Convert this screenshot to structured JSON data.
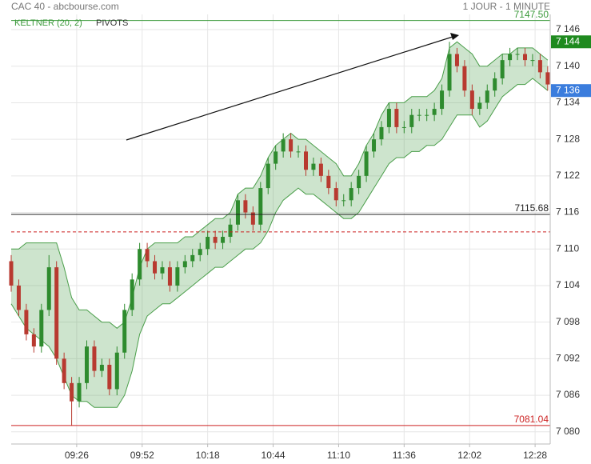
{
  "chart_data": {
    "type": "candlestick",
    "title": "CAC 40 - abcbourse.com",
    "subtitle": "1 JOUR - 1 MINUTE",
    "x": [
      "09:00",
      "09:03",
      "09:06",
      "09:09",
      "09:12",
      "09:15",
      "09:18",
      "09:21",
      "09:24",
      "09:27",
      "09:30",
      "09:33",
      "09:36",
      "09:39",
      "09:42",
      "09:45",
      "09:48",
      "09:51",
      "09:54",
      "09:57",
      "10:00",
      "10:03",
      "10:06",
      "10:09",
      "10:12",
      "10:15",
      "10:18",
      "10:21",
      "10:24",
      "10:27",
      "10:30",
      "10:33",
      "10:36",
      "10:39",
      "10:42",
      "10:45",
      "10:48",
      "10:51",
      "10:54",
      "10:57",
      "11:00",
      "11:03",
      "11:06",
      "11:09",
      "11:12",
      "11:15",
      "11:18",
      "11:21",
      "11:24",
      "11:27",
      "11:30",
      "11:33",
      "11:36",
      "11:39",
      "11:42",
      "11:45",
      "11:48",
      "11:51",
      "11:54",
      "11:57",
      "12:00",
      "12:03",
      "12:06",
      "12:09",
      "12:12",
      "12:15",
      "12:18",
      "12:21",
      "12:24",
      "12:27",
      "12:30",
      "12:33"
    ],
    "open": [
      7108,
      7104,
      7100,
      7096,
      7094,
      7100,
      7107,
      7092,
      7088,
      7085,
      7088,
      7094,
      7090,
      7091,
      7087,
      7093,
      7100,
      7105,
      7110,
      7108,
      7106,
      7107,
      7104,
      7107,
      7108,
      7109,
      7110,
      7112,
      7111,
      7112,
      7114,
      7118,
      7116,
      7114,
      7120,
      7124,
      7126,
      7128,
      7126,
      7126,
      7123,
      7124,
      7122,
      7120,
      7118,
      7118,
      7120,
      7122,
      7126,
      7128,
      7130,
      7133,
      7130,
      7130,
      7132,
      7132,
      7132,
      7133,
      7136,
      7142,
      7140,
      7136,
      7133,
      7134,
      7136,
      7138,
      7141,
      7142,
      7142,
      7141,
      7141,
      7139
    ],
    "high": [
      7109,
      7105,
      7101,
      7097,
      7101,
      7109,
      7108,
      7093,
      7089,
      7089,
      7095,
      7095,
      7092,
      7092,
      7094,
      7101,
      7106,
      7111,
      7111,
      7109,
      7108,
      7108,
      7108,
      7109,
      7110,
      7111,
      7113,
      7113,
      7113,
      7115,
      7119,
      7119,
      7117,
      7121,
      7125,
      7127,
      7129,
      7129,
      7127,
      7127,
      7125,
      7125,
      7123,
      7121,
      7119,
      7121,
      7123,
      7127,
      7129,
      7131,
      7134,
      7134,
      7131,
      7133,
      7133,
      7133,
      7134,
      7137,
      7144,
      7143,
      7141,
      7137,
      7135,
      7137,
      7139,
      7142,
      7143,
      7143,
      7143,
      7142,
      7142,
      7140
    ],
    "low": [
      7103,
      7099,
      7095,
      7093,
      7093,
      7099,
      7091,
      7087,
      7081,
      7084,
      7087,
      7089,
      7089,
      7086,
      7086,
      7092,
      7099,
      7104,
      7107,
      7105,
      7105,
      7103,
      7103,
      7106,
      7107,
      7108,
      7109,
      7110,
      7110,
      7111,
      7113,
      7115,
      7113,
      7113,
      7119,
      7123,
      7125,
      7125,
      7125,
      7122,
      7122,
      7121,
      7119,
      7117,
      7117,
      7117,
      7119,
      7121,
      7125,
      7127,
      7129,
      7129,
      7129,
      7129,
      7131,
      7131,
      7131,
      7132,
      7135,
      7139,
      7135,
      7132,
      7132,
      7133,
      7135,
      7137,
      7140,
      7141,
      7140,
      7140,
      7138,
      7136
    ],
    "close": [
      7104,
      7100,
      7096,
      7094,
      7100,
      7107,
      7092,
      7088,
      7085,
      7088,
      7094,
      7090,
      7091,
      7087,
      7093,
      7100,
      7105,
      7110,
      7108,
      7106,
      7107,
      7104,
      7107,
      7108,
      7109,
      7110,
      7112,
      7111,
      7112,
      7114,
      7118,
      7116,
      7114,
      7120,
      7124,
      7126,
      7128,
      7126,
      7126,
      7123,
      7124,
      7122,
      7120,
      7118,
      7118,
      7120,
      7122,
      7126,
      7128,
      7130,
      7133,
      7130,
      7130,
      7132,
      7132,
      7132,
      7133,
      7136,
      7142,
      7140,
      7136,
      7133,
      7134,
      7136,
      7138,
      7141,
      7142,
      7142,
      7141,
      7141,
      7139,
      7137
    ],
    "up_color": "#2e8b2e",
    "down_color": "#b83a30",
    "keltner": {
      "name": "KELTNER (20, 2)",
      "color": "#4a9e4a",
      "upper": [
        7110,
        7110,
        7111,
        7111,
        7111,
        7111,
        7111,
        7107,
        7102,
        7100,
        7100,
        7099,
        7098,
        7098,
        7097,
        7098,
        7102,
        7107,
        7110,
        7111,
        7111,
        7111,
        7111,
        7112,
        7112,
        7113,
        7114,
        7115,
        7115,
        7116,
        7119,
        7120,
        7120,
        7122,
        7125,
        7127,
        7128,
        7129,
        7128,
        7128,
        7127,
        7126,
        7125,
        7124,
        7122,
        7122,
        7124,
        7127,
        7129,
        7132,
        7134,
        7134,
        7134,
        7135,
        7135,
        7135,
        7136,
        7138,
        7143,
        7144,
        7143,
        7142,
        7140,
        7140,
        7141,
        7142,
        7142,
        7143,
        7143,
        7143,
        7142,
        7141
      ],
      "lower": [
        7101,
        7099,
        7097,
        7096,
        7095,
        7094,
        7092,
        7089,
        7086,
        7085,
        7085,
        7084,
        7084,
        7084,
        7084,
        7086,
        7090,
        7096,
        7099,
        7100,
        7101,
        7101,
        7102,
        7103,
        7104,
        7105,
        7106,
        7107,
        7107,
        7108,
        7109,
        7110,
        7110,
        7111,
        7113,
        7116,
        7118,
        7119,
        7120,
        7119,
        7119,
        7118,
        7117,
        7116,
        7115,
        7115,
        7116,
        7118,
        7120,
        7122,
        7124,
        7125,
        7125,
        7126,
        7126,
        7127,
        7127,
        7128,
        7130,
        7132,
        7132,
        7132,
        7130,
        7131,
        7133,
        7135,
        7136,
        7137,
        7137,
        7138,
        7137,
        7136
      ]
    },
    "pivots": {
      "name": "PIVOTS",
      "color": "#cc2222",
      "values": [
        7112.8
      ]
    },
    "levels": [
      {
        "value": 7147.5,
        "label": "7147.50",
        "color": "#3c9a3c"
      },
      {
        "value": 7115.68,
        "label": "7115.68",
        "color": "#222222"
      },
      {
        "value": 7081.04,
        "label": "7081.04",
        "color": "#cc2222"
      }
    ],
    "price_tags": [
      {
        "value": 7144,
        "label": "7 144",
        "color": "#1f8a1f"
      },
      {
        "value": 7136,
        "label": "7 136",
        "color": "#3b7ddd"
      }
    ],
    "xlim": [
      "09:00",
      "12:34"
    ],
    "xticks": [
      "09:26",
      "09:52",
      "10:18",
      "10:44",
      "11:10",
      "11:36",
      "12:02",
      "12:28"
    ],
    "ylim": [
      7078,
      7148.5
    ],
    "yticks": [
      {
        "value": 7146,
        "label": "7 146"
      },
      {
        "value": 7140,
        "label": "7 140"
      },
      {
        "value": 7134,
        "label": "7 134"
      },
      {
        "value": 7128,
        "label": "7 128"
      },
      {
        "value": 7122,
        "label": "7 122"
      },
      {
        "value": 7116,
        "label": "7 116"
      },
      {
        "value": 7110,
        "label": "7 110"
      },
      {
        "value": 7104,
        "label": "7 104"
      },
      {
        "value": 7098,
        "label": "7 098"
      },
      {
        "value": 7092,
        "label": "7 092"
      },
      {
        "value": 7086,
        "label": "7 086"
      },
      {
        "value": 7080,
        "label": "7 080"
      }
    ],
    "grid": true
  }
}
